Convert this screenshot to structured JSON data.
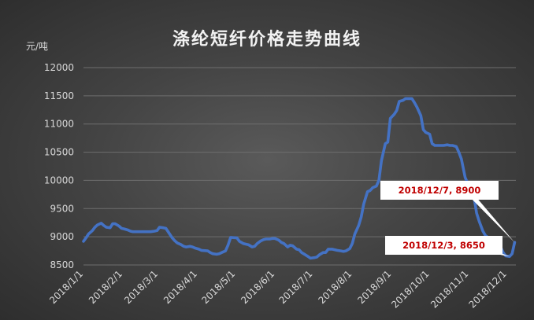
{
  "chart_data": {
    "type": "line",
    "title": "涤纶短纤价格走势曲线",
    "unit_label": "元/吨",
    "ylim": [
      8500,
      12000
    ],
    "yticks": [
      8500,
      9000,
      9500,
      10000,
      10500,
      11000,
      11500,
      12000
    ],
    "x_tick_labels": [
      "2018/1/1",
      "2018/2/1",
      "2018/3/1",
      "2018/4/1",
      "2018/5/1",
      "2018/6/1",
      "2018/7/1",
      "2018/8/1",
      "2018/9/1",
      "2018/10/1",
      "2018/11/1",
      "2018/12/1"
    ],
    "x_tick_dates": [
      "2018-01-01",
      "2018-02-01",
      "2018-03-01",
      "2018-04-01",
      "2018-05-01",
      "2018-06-01",
      "2018-07-01",
      "2018-08-01",
      "2018-09-01",
      "2018-10-01",
      "2018-11-01",
      "2018-12-01"
    ],
    "x_end_date": "2018-12-08",
    "grid": "horizontal",
    "line_color": "#4472c4",
    "series": [
      {
        "points": [
          [
            "2018-01-01",
            8920
          ],
          [
            "2018-01-03",
            8980
          ],
          [
            "2018-01-05",
            9050
          ],
          [
            "2018-01-08",
            9110
          ],
          [
            "2018-01-10",
            9170
          ],
          [
            "2018-01-12",
            9210
          ],
          [
            "2018-01-15",
            9240
          ],
          [
            "2018-01-17",
            9200
          ],
          [
            "2018-01-19",
            9170
          ],
          [
            "2018-01-22",
            9160
          ],
          [
            "2018-01-24",
            9230
          ],
          [
            "2018-01-26",
            9230
          ],
          [
            "2018-01-29",
            9190
          ],
          [
            "2018-01-31",
            9150
          ],
          [
            "2018-02-02",
            9140
          ],
          [
            "2018-02-05",
            9120
          ],
          [
            "2018-02-07",
            9100
          ],
          [
            "2018-02-09",
            9090
          ],
          [
            "2018-02-12",
            9090
          ],
          [
            "2018-02-23",
            9090
          ],
          [
            "2018-02-26",
            9100
          ],
          [
            "2018-02-28",
            9110
          ],
          [
            "2018-03-02",
            9170
          ],
          [
            "2018-03-05",
            9160
          ],
          [
            "2018-03-07",
            9150
          ],
          [
            "2018-03-09",
            9080
          ],
          [
            "2018-03-12",
            8980
          ],
          [
            "2018-03-14",
            8930
          ],
          [
            "2018-03-16",
            8890
          ],
          [
            "2018-03-19",
            8860
          ],
          [
            "2018-03-21",
            8830
          ],
          [
            "2018-03-23",
            8820
          ],
          [
            "2018-03-26",
            8830
          ],
          [
            "2018-03-28",
            8820
          ],
          [
            "2018-03-30",
            8800
          ],
          [
            "2018-04-02",
            8780
          ],
          [
            "2018-04-04",
            8760
          ],
          [
            "2018-04-09",
            8750
          ],
          [
            "2018-04-11",
            8720
          ],
          [
            "2018-04-13",
            8700
          ],
          [
            "2018-04-16",
            8690
          ],
          [
            "2018-04-18",
            8700
          ],
          [
            "2018-04-20",
            8720
          ],
          [
            "2018-04-23",
            8750
          ],
          [
            "2018-04-25",
            8850
          ],
          [
            "2018-04-27",
            8990
          ],
          [
            "2018-05-02",
            8980
          ],
          [
            "2018-05-04",
            8920
          ],
          [
            "2018-05-07",
            8880
          ],
          [
            "2018-05-09",
            8870
          ],
          [
            "2018-05-11",
            8860
          ],
          [
            "2018-05-14",
            8820
          ],
          [
            "2018-05-16",
            8830
          ],
          [
            "2018-05-18",
            8880
          ],
          [
            "2018-05-21",
            8930
          ],
          [
            "2018-05-23",
            8950
          ],
          [
            "2018-05-25",
            8960
          ],
          [
            "2018-05-28",
            8960
          ],
          [
            "2018-05-30",
            8970
          ],
          [
            "2018-06-01",
            8970
          ],
          [
            "2018-06-04",
            8940
          ],
          [
            "2018-06-06",
            8900
          ],
          [
            "2018-06-08",
            8880
          ],
          [
            "2018-06-11",
            8820
          ],
          [
            "2018-06-13",
            8850
          ],
          [
            "2018-06-15",
            8840
          ],
          [
            "2018-06-18",
            8780
          ],
          [
            "2018-06-20",
            8770
          ],
          [
            "2018-06-22",
            8720
          ],
          [
            "2018-06-25",
            8680
          ],
          [
            "2018-06-27",
            8650
          ],
          [
            "2018-06-29",
            8620
          ],
          [
            "2018-07-02",
            8630
          ],
          [
            "2018-07-04",
            8640
          ],
          [
            "2018-07-06",
            8680
          ],
          [
            "2018-07-09",
            8720
          ],
          [
            "2018-07-11",
            8720
          ],
          [
            "2018-07-13",
            8780
          ],
          [
            "2018-07-16",
            8780
          ],
          [
            "2018-07-18",
            8770
          ],
          [
            "2018-07-20",
            8760
          ],
          [
            "2018-07-23",
            8750
          ],
          [
            "2018-07-25",
            8740
          ],
          [
            "2018-07-27",
            8750
          ],
          [
            "2018-07-30",
            8790
          ],
          [
            "2018-08-01",
            8880
          ],
          [
            "2018-08-03",
            9050
          ],
          [
            "2018-08-06",
            9200
          ],
          [
            "2018-08-08",
            9350
          ],
          [
            "2018-08-10",
            9580
          ],
          [
            "2018-08-13",
            9800
          ],
          [
            "2018-08-15",
            9820
          ],
          [
            "2018-08-17",
            9870
          ],
          [
            "2018-08-20",
            9900
          ],
          [
            "2018-08-22",
            10000
          ],
          [
            "2018-08-24",
            10350
          ],
          [
            "2018-08-27",
            10650
          ],
          [
            "2018-08-29",
            10680
          ],
          [
            "2018-08-31",
            11100
          ],
          [
            "2018-09-03",
            11170
          ],
          [
            "2018-09-05",
            11240
          ],
          [
            "2018-09-07",
            11400
          ],
          [
            "2018-09-10",
            11420
          ],
          [
            "2018-09-12",
            11450
          ],
          [
            "2018-09-14",
            11450
          ],
          [
            "2018-09-17",
            11450
          ],
          [
            "2018-09-19",
            11380
          ],
          [
            "2018-09-21",
            11300
          ],
          [
            "2018-09-24",
            11150
          ],
          [
            "2018-09-26",
            10900
          ],
          [
            "2018-09-28",
            10850
          ],
          [
            "2018-10-01",
            10820
          ],
          [
            "2018-10-03",
            10650
          ],
          [
            "2018-10-05",
            10620
          ],
          [
            "2018-10-08",
            10620
          ],
          [
            "2018-10-10",
            10620
          ],
          [
            "2018-10-12",
            10620
          ],
          [
            "2018-10-15",
            10630
          ],
          [
            "2018-10-17",
            10620
          ],
          [
            "2018-10-19",
            10620
          ],
          [
            "2018-10-22",
            10600
          ],
          [
            "2018-10-24",
            10500
          ],
          [
            "2018-10-26",
            10380
          ],
          [
            "2018-10-29",
            10050
          ],
          [
            "2018-10-31",
            9950
          ],
          [
            "2018-11-02",
            9850
          ],
          [
            "2018-11-05",
            9700
          ],
          [
            "2018-11-07",
            9420
          ],
          [
            "2018-11-09",
            9280
          ],
          [
            "2018-11-12",
            9100
          ],
          [
            "2018-11-14",
            9020
          ],
          [
            "2018-11-16",
            8990
          ],
          [
            "2018-11-19",
            8980
          ],
          [
            "2018-11-21",
            8900
          ],
          [
            "2018-11-23",
            8870
          ],
          [
            "2018-11-26",
            8820
          ],
          [
            "2018-11-28",
            8720
          ],
          [
            "2018-11-30",
            8660
          ],
          [
            "2018-12-03",
            8650
          ],
          [
            "2018-12-05",
            8700
          ],
          [
            "2018-12-07",
            8900
          ]
        ]
      }
    ],
    "annotations": [
      {
        "label": "2018/12/7, 8900",
        "date": "2018-12-07",
        "value": 8900
      },
      {
        "label": "2018/12/3, 8650",
        "date": "2018-12-03",
        "value": 8650
      }
    ]
  }
}
